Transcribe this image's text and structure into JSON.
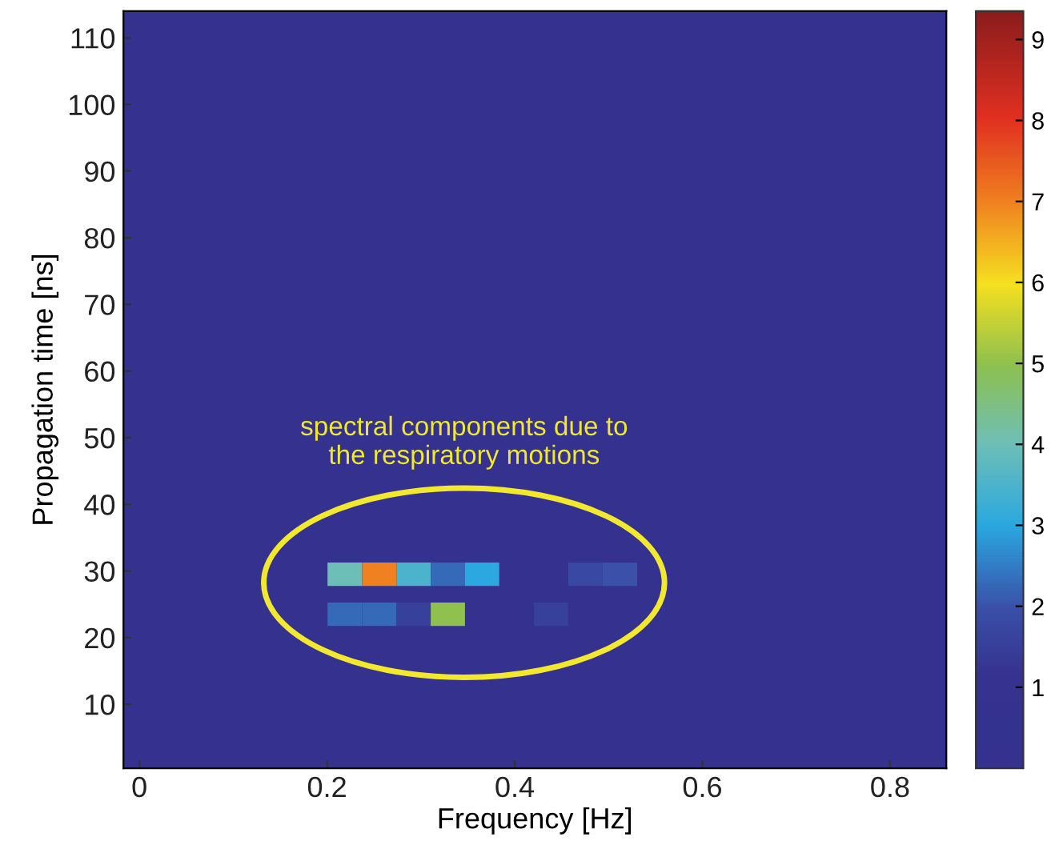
{
  "chart_data": {
    "type": "heatmap",
    "xlabel": "Frequency [Hz]",
    "ylabel": "Propagation time [ns]",
    "x": [
      0.219,
      0.256,
      0.292,
      0.329,
      0.365,
      0.402,
      0.439,
      0.475,
      0.512,
      0.549,
      0.585
    ],
    "y": [
      29.5,
      23.5
    ],
    "cells": [
      [
        4,
        7,
        3.5,
        2.3,
        3,
        null,
        null,
        1.8,
        2,
        null,
        null
      ],
      [
        2.3,
        2.3,
        1.5,
        5,
        null,
        null,
        1.5,
        null,
        null,
        null,
        null
      ]
    ],
    "clim": [
      0,
      9.35
    ],
    "cticks": [
      1,
      2,
      3,
      4,
      5,
      6,
      7,
      8,
      9
    ],
    "xlim": [
      -0.017,
      0.86
    ],
    "xticks": [
      0,
      0.2,
      0.4,
      0.6,
      0.8
    ],
    "ylim": [
      0.4,
      114
    ],
    "yticks": [
      10,
      20,
      30,
      40,
      50,
      60,
      70,
      80,
      90,
      100,
      110
    ],
    "annotations": [
      "spectral components due to\nthe respiratory motions"
    ],
    "grid": false
  }
}
